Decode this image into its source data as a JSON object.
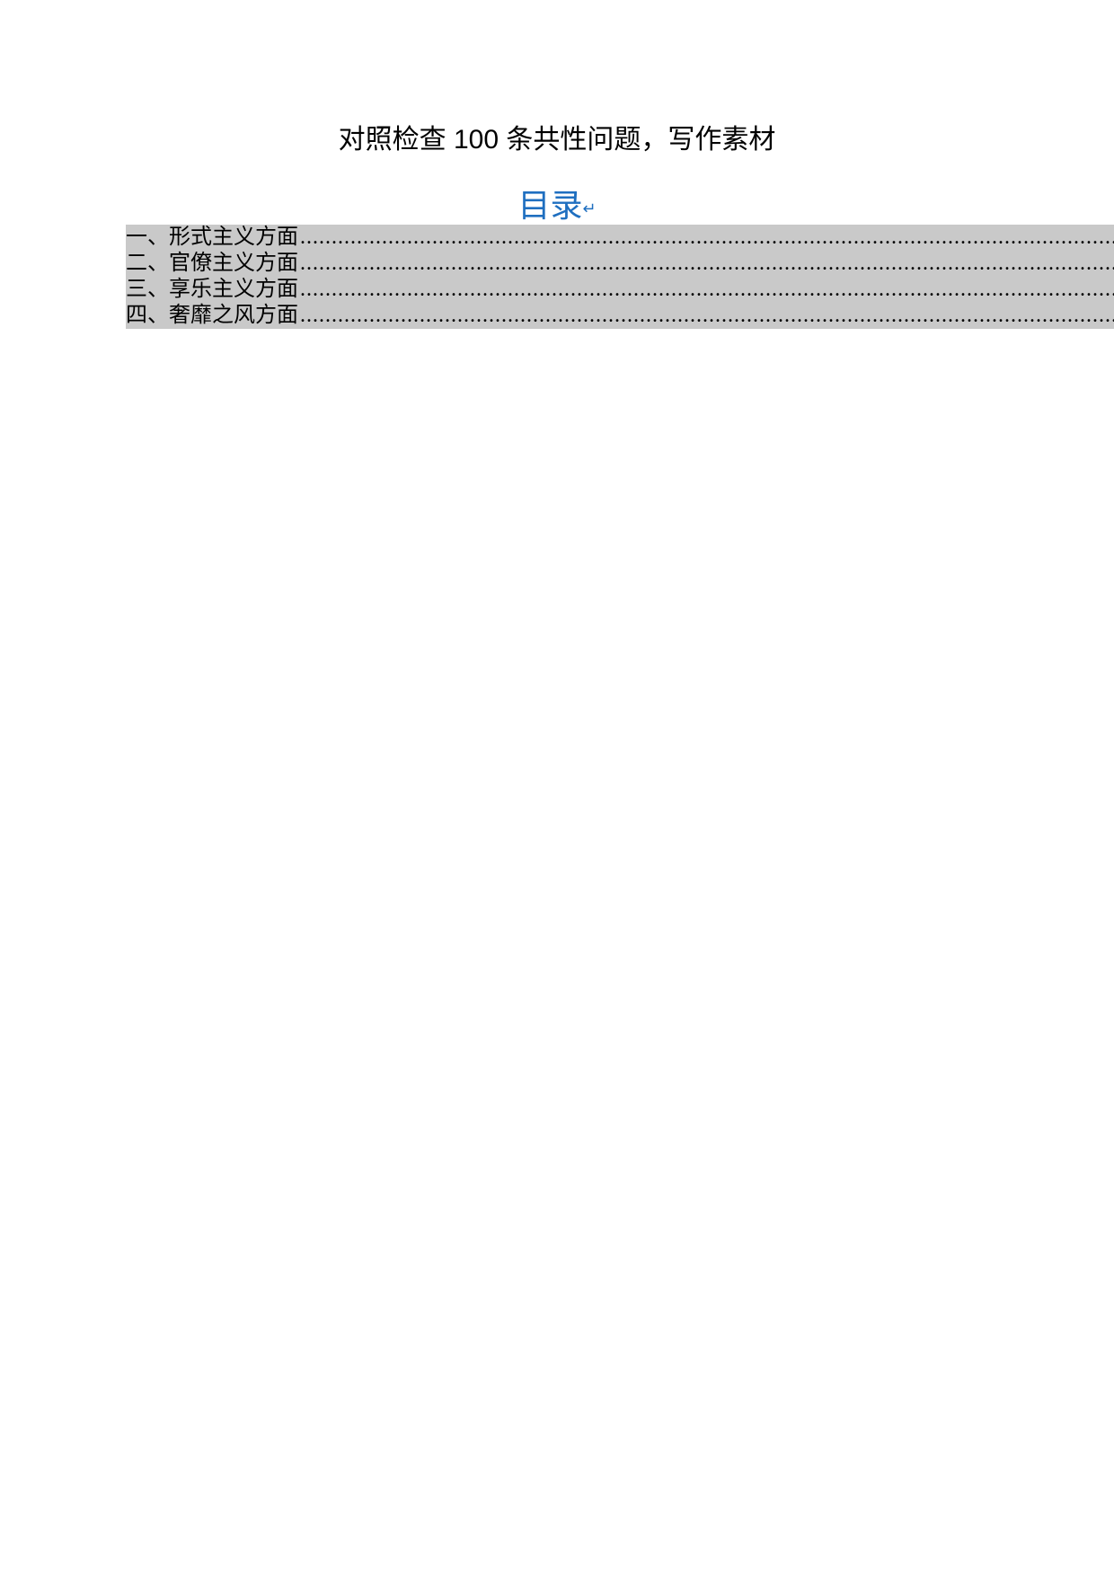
{
  "title": "对照检查 100 条共性问题，写作素材",
  "toc": {
    "heading": "目录",
    "heading_marker": "↵",
    "entries": [
      {
        "label": "一、形式主义方面"
      },
      {
        "label": "二、官僚主义方面"
      },
      {
        "label": "三、享乐主义方面"
      },
      {
        "label": "四、奢靡之风方面"
      }
    ]
  },
  "colors": {
    "title_color": "#000000",
    "toc_heading_color": "#1f6fc0",
    "toc_background": "#c9c9c9",
    "toc_text_color": "#000000",
    "page_background": "#ffffff"
  },
  "typography": {
    "title_fontsize": 30,
    "toc_heading_fontsize": 36,
    "toc_entry_fontsize": 24
  }
}
